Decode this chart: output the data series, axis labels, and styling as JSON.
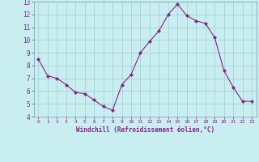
{
  "x": [
    0,
    1,
    2,
    3,
    4,
    5,
    6,
    7,
    8,
    9,
    10,
    11,
    12,
    13,
    14,
    15,
    16,
    17,
    18,
    19,
    20,
    21,
    22,
    23
  ],
  "y": [
    8.5,
    7.2,
    7.0,
    6.5,
    5.9,
    5.8,
    5.3,
    4.8,
    4.5,
    6.5,
    7.3,
    9.0,
    9.9,
    10.7,
    12.0,
    12.8,
    11.9,
    11.5,
    11.3,
    10.2,
    7.6,
    6.3,
    5.2,
    5.2
  ],
  "line_color": "#882288",
  "marker": "D",
  "marker_size": 2.0,
  "bg_color": "#c8eef0",
  "grid_color": "#a0cdd0",
  "tick_color": "#882288",
  "label_color": "#882288",
  "xlabel": "Windchill (Refroidissement éolien,°C)",
  "ylim": [
    4,
    13
  ],
  "xlim": [
    -0.5,
    23.5
  ],
  "yticks": [
    4,
    5,
    6,
    7,
    8,
    9,
    10,
    11,
    12,
    13
  ],
  "xticks": [
    0,
    1,
    2,
    3,
    4,
    5,
    6,
    7,
    8,
    9,
    10,
    11,
    12,
    13,
    14,
    15,
    16,
    17,
    18,
    19,
    20,
    21,
    22,
    23
  ],
  "figsize": [
    3.2,
    2.0
  ],
  "dpi": 100
}
